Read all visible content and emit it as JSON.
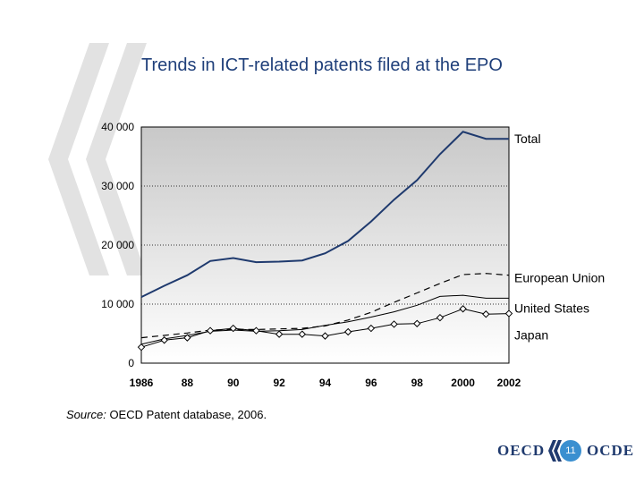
{
  "slide": {
    "title": "Trends in ICT-related patents filed at the EPO",
    "source_label": "Source:",
    "source_text": "OECD Patent database, 2006.",
    "page_number": "11",
    "logo_left": "OECD",
    "logo_right": "OCDE"
  },
  "colors": {
    "title": "#1f3f7a",
    "total": "#1f3a6e",
    "lines": "#000000",
    "plot_top": "#c8c8c8",
    "plot_bottom": "#ffffff"
  },
  "chart_data": {
    "type": "line",
    "title": "Trends in ICT-related patents filed at the EPO",
    "xlabel": "",
    "ylabel": "",
    "x": [
      1986,
      1987,
      1988,
      1989,
      1990,
      1991,
      1992,
      1993,
      1994,
      1995,
      1996,
      1997,
      1998,
      1999,
      2000,
      2001,
      2002
    ],
    "x_tick_labels": [
      "1986",
      "88",
      "90",
      "92",
      "94",
      "96",
      "98",
      "2000",
      "2002"
    ],
    "x_tick_values": [
      1986,
      1988,
      1990,
      1992,
      1994,
      1996,
      1998,
      2000,
      2002
    ],
    "y_tick_labels": [
      "0",
      "10 000",
      "20 000",
      "30 000",
      "40 000"
    ],
    "y_tick_values": [
      0,
      10000,
      20000,
      30000,
      40000
    ],
    "xlim": [
      1986,
      2002
    ],
    "ylim": [
      0,
      40000
    ],
    "grid": "horizontal dotted",
    "series": [
      {
        "name": "Total",
        "style": "solid-thick",
        "values": [
          11200,
          13100,
          14900,
          17300,
          17800,
          17100,
          17200,
          17400,
          18600,
          20700,
          24000,
          27700,
          31000,
          35400,
          39200,
          38000,
          38000
        ]
      },
      {
        "name": "European Union",
        "style": "dashed",
        "values": [
          4300,
          4700,
          5100,
          5600,
          5700,
          5700,
          5800,
          5900,
          6300,
          7300,
          8600,
          10300,
          11900,
          13500,
          15000,
          15200,
          14900
        ]
      },
      {
        "name": "United States",
        "style": "solid-thin",
        "values": [
          3200,
          4100,
          4700,
          5400,
          5600,
          5400,
          5500,
          5700,
          6400,
          7000,
          7800,
          8700,
          9800,
          11300,
          11500,
          11000,
          11000
        ]
      },
      {
        "name": "Japan",
        "style": "diamond",
        "values": [
          2700,
          3900,
          4300,
          5500,
          5900,
          5500,
          4900,
          4900,
          4600,
          5300,
          5900,
          6600,
          6700,
          7700,
          9200,
          8300,
          8400
        ]
      }
    ]
  }
}
